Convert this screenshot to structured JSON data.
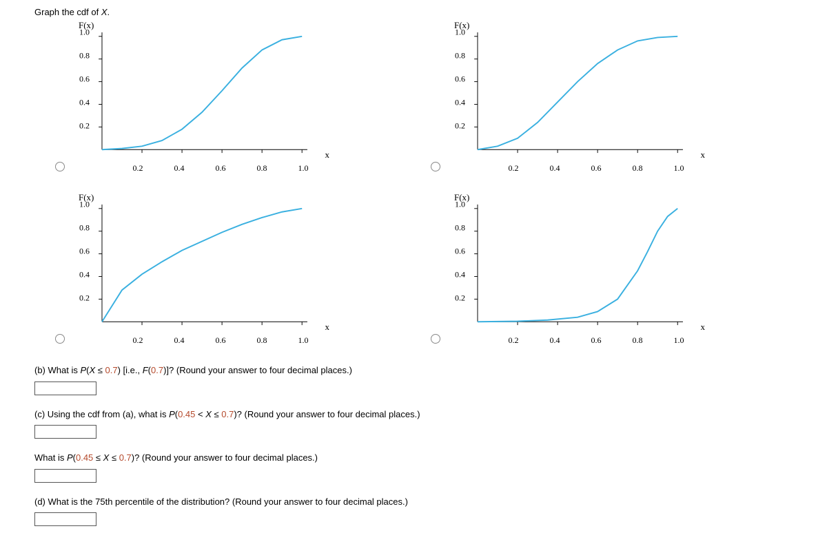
{
  "intro": "Graph the cdf of X.",
  "chart_common": {
    "y_title": "F(x)",
    "x_title": "x",
    "xlim": [
      0,
      1.0
    ],
    "ylim": [
      0,
      1.0
    ],
    "x_ticks": [
      0.2,
      0.4,
      0.6,
      0.8,
      1.0
    ],
    "y_ticks": [
      0.2,
      0.4,
      0.6,
      0.8,
      1.0
    ],
    "axis_color": "#000000",
    "curve_color": "#3ab0e0",
    "curve_width": 2,
    "background_color": "#ffffff",
    "axis_font": "Times New Roman",
    "tick_fontsize": 12,
    "title_fontsize": 13
  },
  "charts": [
    {
      "id": "chart-a",
      "curve_desc": "slow start, steep middle, flattens at 1 near x≈0.95 (logistic-like centered ~0.6)",
      "curve_points": [
        [
          0,
          0
        ],
        [
          0.1,
          0.01
        ],
        [
          0.2,
          0.03
        ],
        [
          0.3,
          0.08
        ],
        [
          0.4,
          0.18
        ],
        [
          0.5,
          0.33
        ],
        [
          0.6,
          0.52
        ],
        [
          0.7,
          0.72
        ],
        [
          0.8,
          0.88
        ],
        [
          0.9,
          0.97
        ],
        [
          1.0,
          1.0
        ]
      ]
    },
    {
      "id": "chart-b",
      "curve_desc": "logistic-like centered ~0.45, reaches 1 near x≈0.9",
      "curve_points": [
        [
          0,
          0
        ],
        [
          0.1,
          0.03
        ],
        [
          0.2,
          0.1
        ],
        [
          0.3,
          0.24
        ],
        [
          0.4,
          0.42
        ],
        [
          0.5,
          0.6
        ],
        [
          0.6,
          0.76
        ],
        [
          0.7,
          0.88
        ],
        [
          0.8,
          0.96
        ],
        [
          0.9,
          0.99
        ],
        [
          1.0,
          1.0
        ]
      ]
    },
    {
      "id": "chart-c",
      "curve_desc": "concave, rises quickly then flattens (like sqrt)",
      "curve_points": [
        [
          0,
          0
        ],
        [
          0.1,
          0.28
        ],
        [
          0.2,
          0.42
        ],
        [
          0.3,
          0.53
        ],
        [
          0.4,
          0.63
        ],
        [
          0.5,
          0.71
        ],
        [
          0.6,
          0.79
        ],
        [
          0.7,
          0.86
        ],
        [
          0.8,
          0.92
        ],
        [
          0.9,
          0.97
        ],
        [
          1.0,
          1.0
        ]
      ]
    },
    {
      "id": "chart-d",
      "curve_desc": "flat near 0 until ~0.6 then steep rise to 1 (late takeoff)",
      "curve_points": [
        [
          0,
          0
        ],
        [
          0.2,
          0.005
        ],
        [
          0.35,
          0.015
        ],
        [
          0.5,
          0.04
        ],
        [
          0.6,
          0.09
        ],
        [
          0.7,
          0.2
        ],
        [
          0.8,
          0.45
        ],
        [
          0.85,
          0.62
        ],
        [
          0.9,
          0.8
        ],
        [
          0.95,
          0.93
        ],
        [
          1.0,
          1.0
        ]
      ]
    }
  ],
  "questions": {
    "b_html": "(b) What is <span class='em-ital'>P</span>(<span class='em-ital'>X</span> ≤ <span class='hl'>0.7</span>) [i.e., <span class='em-ital'>F</span>(<span class='hl'>0.7</span>)]? (Round your answer to four decimal places.)",
    "c_html": "(c) Using the cdf from (a), what is <span class='em-ital'>P</span>(<span class='hl'>0.45</span> &lt; <span class='em-ital'>X</span> ≤ <span class='hl'>0.7</span>)? (Round your answer to four decimal places.)",
    "c2_html": "What is <span class='em-ital'>P</span>(<span class='hl'>0.45</span> ≤ <span class='em-ital'>X</span> ≤ <span class='hl'>0.7</span>)? (Round your answer to four decimal places.)",
    "d_html": "(d) What is the 75th percentile of the distribution? (Round your answer to four decimal places.)"
  }
}
